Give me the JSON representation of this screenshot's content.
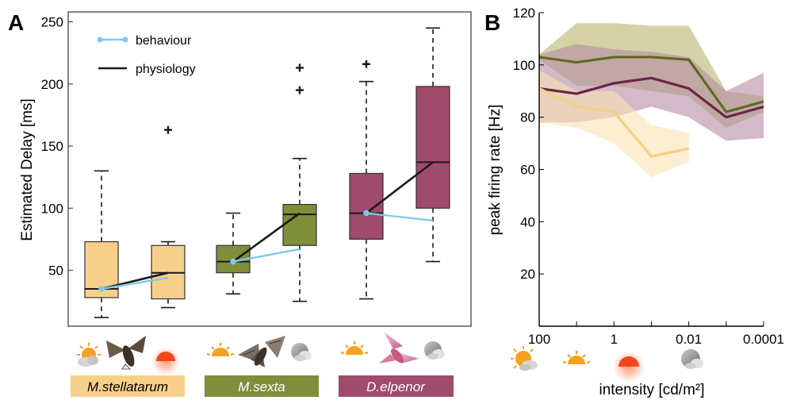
{
  "panel_a": {
    "label": "A",
    "chart_data": {
      "type": "box",
      "title": "",
      "ylabel": "Estimated Delay [ms]",
      "xlabel": "",
      "ylim": [
        5,
        258
      ],
      "yticks": [
        50,
        100,
        150,
        200,
        250
      ],
      "grid": false,
      "legend": {
        "placement": "top-left",
        "entries": [
          {
            "label": "behaviour",
            "color": "#7ccbee"
          },
          {
            "label": "physiology",
            "color": "#1a1a1a"
          }
        ]
      },
      "species": [
        {
          "name": "M.stellatarum",
          "color": "#f6d08a",
          "icons": [
            "sun-cloud-icon",
            "hummingbird-hawkmoth-icon",
            "sunset-icon"
          ]
        },
        {
          "name": "M.sexta",
          "color": "#7f8e3a",
          "icons": [
            "sunrise-icon",
            "tobacco-hawkmoth-icon",
            "moon-cloud-icon"
          ]
        },
        {
          "name": "D.elpenor",
          "color": "#a04a6c",
          "icons": [
            "sunrise-icon",
            "elephant-hawkmoth-icon",
            "moon-cloud-icon"
          ]
        }
      ],
      "boxes": [
        {
          "species": 0,
          "whisker_low": 12,
          "q1": 28,
          "median": 35,
          "q3": 73,
          "whisker_high": 130,
          "outliers": []
        },
        {
          "species": 0,
          "whisker_low": 20,
          "q1": 27,
          "median": 48,
          "q3": 70,
          "whisker_high": 73,
          "outliers": [
            163
          ]
        },
        {
          "species": 1,
          "whisker_low": 31,
          "q1": 48,
          "median": 57,
          "q3": 70,
          "whisker_high": 96,
          "outliers": []
        },
        {
          "species": 1,
          "whisker_low": 25,
          "q1": 70,
          "median": 95,
          "q3": 103,
          "whisker_high": 140,
          "outliers": [
            195,
            213
          ]
        },
        {
          "species": 2,
          "whisker_low": 27,
          "q1": 75,
          "median": 96,
          "q3": 128,
          "whisker_high": 202,
          "outliers": [
            216
          ]
        },
        {
          "species": 2,
          "whisker_low": 57,
          "q1": 100,
          "median": 137,
          "q3": 198,
          "whisker_high": 245,
          "outliers": []
        }
      ],
      "series": [
        {
          "name": "behaviour",
          "color": "#7ccbee",
          "segments": [
            [
              [
                1,
                35
              ],
              [
                2,
                44
              ]
            ],
            [
              [
                3,
                57
              ],
              [
                4,
                67
              ]
            ],
            [
              [
                5,
                96
              ],
              [
                6,
                90
              ]
            ]
          ]
        },
        {
          "name": "physiology",
          "color": "#1a1a1a",
          "segments": [
            [
              [
                1,
                35
              ],
              [
                2,
                48
              ]
            ],
            [
              [
                3,
                57
              ],
              [
                4,
                96
              ]
            ],
            [
              [
                5,
                96
              ],
              [
                6,
                137
              ]
            ]
          ]
        }
      ]
    }
  },
  "panel_b": {
    "label": "B",
    "chart_data": {
      "type": "line",
      "title": "",
      "xlabel": "intensity [cd/m²]",
      "ylabel": "peak firing rate [Hz]",
      "x_scale": "log",
      "x_reversed": true,
      "xlim": [
        100,
        0.0001
      ],
      "x_ticks": [
        100,
        1,
        0.01,
        0.0001
      ],
      "x_tick_labels": [
        "100",
        "1",
        "0.01",
        "0.0001"
      ],
      "ylim": [
        0,
        120
      ],
      "y_ticks": [
        20,
        40,
        60,
        80,
        100,
        120
      ],
      "grid": false,
      "icons": [
        "sun-cloud-icon",
        "sunrise-icon",
        "sunset-icon",
        "moon-cloud-icon"
      ],
      "series": [
        {
          "species": "M.sexta",
          "color": "#5f6b22",
          "band_color": "#b8b46a",
          "x": [
            100,
            10,
            1,
            0.1,
            0.01,
            0.001,
            0.0001
          ],
          "y": [
            103,
            101,
            103,
            103,
            102,
            82,
            86
          ],
          "upper": [
            104,
            116,
            116,
            115,
            115,
            90,
            88
          ],
          "lower": [
            102,
            92,
            92,
            90,
            88,
            76,
            82
          ]
        },
        {
          "species": "D.elpenor",
          "color": "#6e2446",
          "band_color": "#b68ca4",
          "x": [
            100,
            10,
            1,
            0.1,
            0.01,
            0.001,
            0.0001
          ],
          "y": [
            91,
            89,
            93,
            95,
            91,
            80,
            84
          ],
          "upper": [
            104,
            108,
            106,
            105,
            103,
            90,
            97
          ],
          "lower": [
            78,
            78,
            80,
            84,
            80,
            71,
            72
          ]
        },
        {
          "species": "M.stellatarum",
          "color": "#f7cf82",
          "band_color": "#fbe3b4",
          "x": [
            100,
            10,
            1,
            0.1,
            0.01
          ],
          "y": [
            91,
            84,
            82,
            65,
            68
          ],
          "upper": [
            98,
            90,
            90,
            77,
            74
          ],
          "lower": [
            78,
            76,
            70,
            57,
            63
          ]
        }
      ]
    }
  }
}
